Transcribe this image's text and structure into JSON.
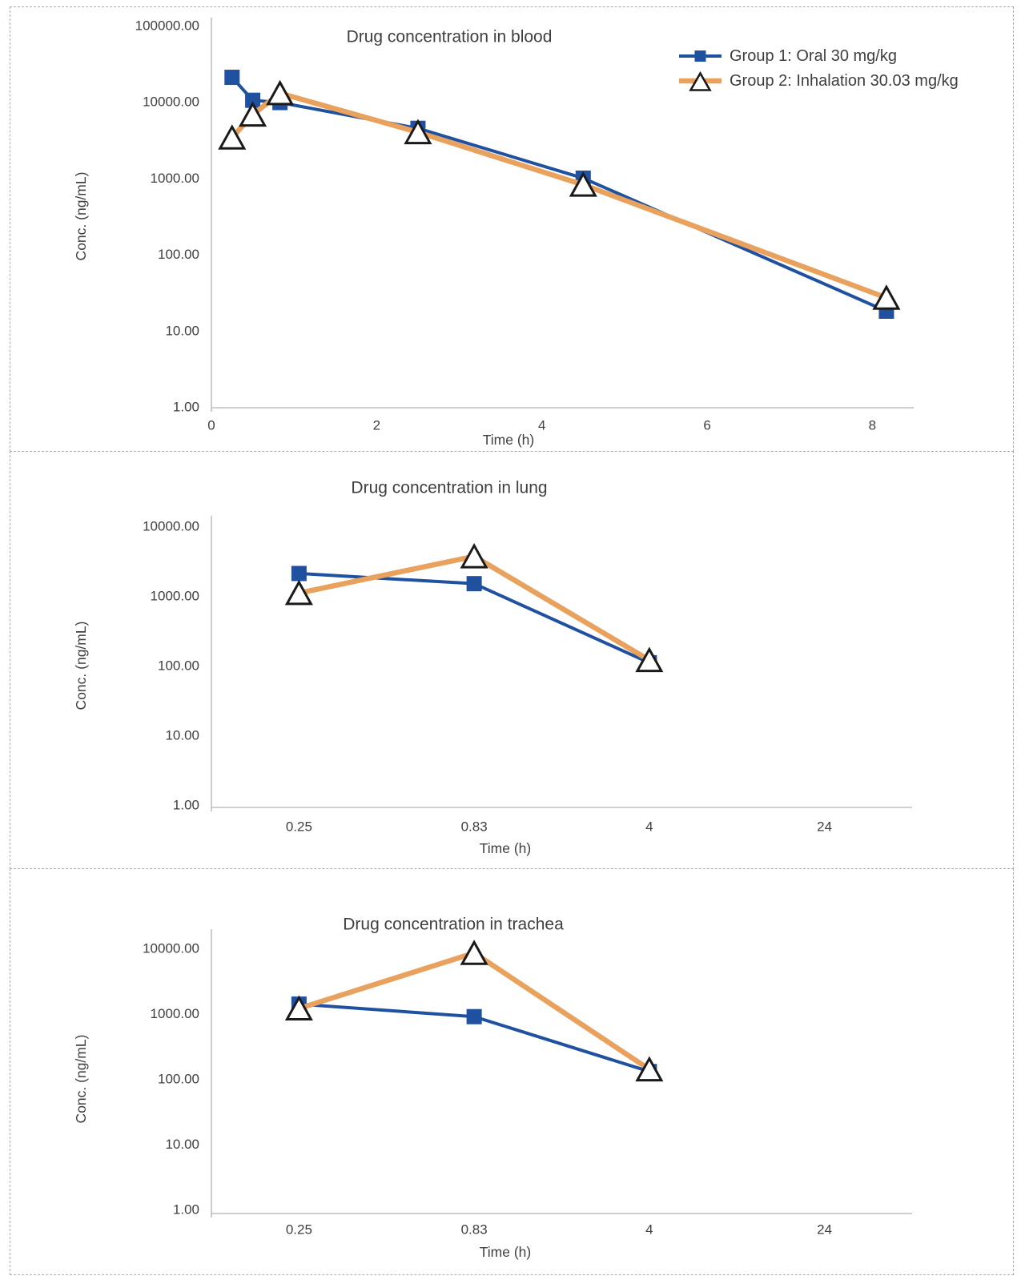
{
  "colors": {
    "group1": "#2051A0",
    "group2": "#E8A25E",
    "triangle_fill": "#FFFFFF",
    "triangle_stroke": "#1A1A1A",
    "axis_line": "#BFBFBF",
    "text": "#3F3F3F",
    "panel_border": "#ABABAB",
    "background": "#FFFFFF"
  },
  "legend": {
    "position": "top-right",
    "entries": [
      {
        "series": "group1",
        "label": "Group 1: Oral 30 mg/kg"
      },
      {
        "series": "group2",
        "label": "Group 2: Inhalation 30.03 mg/kg"
      }
    ]
  },
  "chart_data": [
    {
      "type": "line",
      "title": "Drug concentration in blood",
      "xlabel": "Time (h)",
      "ylabel": "Conc. (ng/mL)",
      "grid": false,
      "show_legend": true,
      "x_axis": {
        "type": "linear",
        "range": [
          0,
          8.5
        ],
        "tick_values": [
          0,
          2,
          4,
          6,
          8
        ],
        "tick_labels": [
          "0",
          "2",
          "4",
          "6",
          "8"
        ]
      },
      "y_axis": {
        "type": "log",
        "range": [
          1,
          100000
        ],
        "tick_labels": [
          "100000.00",
          "10000.00",
          "1000.00",
          "100.00",
          "10.00",
          "1.00"
        ]
      },
      "series": [
        {
          "key": "group1",
          "name": "Group 1: Oral 30 mg/kg",
          "marker": "filled-square",
          "x": [
            0.25,
            0.5,
            0.83,
            2.5,
            4.5,
            8.17
          ],
          "y": [
            21000,
            10500,
            9800,
            4500,
            1000,
            18
          ]
        },
        {
          "key": "group2",
          "name": "Group 2: Inhalation 30.03 mg/kg",
          "marker": "open-triangle",
          "x": [
            0.25,
            0.5,
            0.83,
            2.5,
            4.5,
            8.17
          ],
          "y": [
            3400,
            6800,
            13000,
            4000,
            820,
            27
          ]
        }
      ]
    },
    {
      "type": "line",
      "title": "Drug concentration in lung",
      "xlabel": "Time (h)",
      "ylabel": "Conc. (ng/mL)",
      "grid": false,
      "show_legend": false,
      "x_axis": {
        "type": "category",
        "categories": [
          "0.25",
          "0.83",
          "4",
          "24"
        ]
      },
      "y_axis": {
        "type": "log",
        "range": [
          1,
          10000
        ],
        "tick_labels": [
          "10000.00",
          "1000.00",
          "100.00",
          "10.00",
          "1.00"
        ]
      },
      "series": [
        {
          "key": "group1",
          "name": "Group 1: Oral 30 mg/kg",
          "marker": "filled-square",
          "category_indices": [
            0,
            1,
            2
          ],
          "y": [
            2100,
            1500,
            110
          ]
        },
        {
          "key": "group2",
          "name": "Group 2: Inhalation 30.03 mg/kg",
          "marker": "open-triangle",
          "category_indices": [
            0,
            1,
            2
          ],
          "y": [
            1100,
            3700,
            120
          ]
        }
      ]
    },
    {
      "type": "line",
      "title": "Drug concentration in trachea",
      "xlabel": "Time (h)",
      "ylabel": "Conc. (ng/mL)",
      "grid": false,
      "show_legend": false,
      "x_axis": {
        "type": "category",
        "categories": [
          "0.25",
          "0.83",
          "4",
          "24"
        ]
      },
      "y_axis": {
        "type": "log",
        "range": [
          1,
          10000
        ],
        "tick_labels": [
          "10000.00",
          "1000.00",
          "100.00",
          "10.00",
          "1.00"
        ]
      },
      "series": [
        {
          "key": "group1",
          "name": "Group 1: Oral 30 mg/kg",
          "marker": "filled-square",
          "category_indices": [
            0,
            1,
            2
          ],
          "y": [
            1400,
            900,
            130
          ]
        },
        {
          "key": "group2",
          "name": "Group 2: Inhalation 30.03 mg/kg",
          "marker": "open-triangle",
          "category_indices": [
            0,
            1,
            2
          ],
          "y": [
            1200,
            8500,
            140
          ]
        }
      ]
    }
  ]
}
